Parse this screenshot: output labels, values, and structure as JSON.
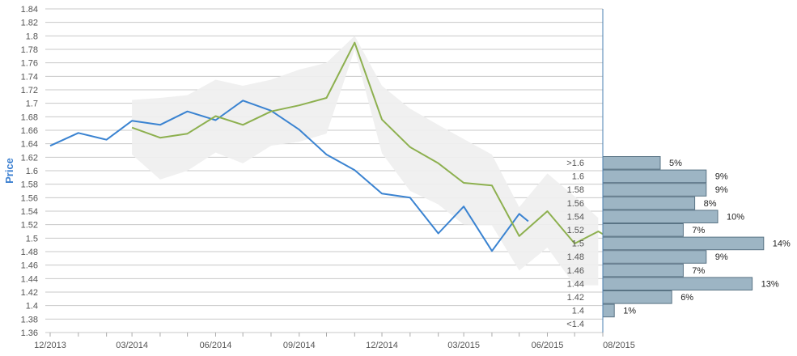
{
  "chart_data": {
    "type": "line",
    "ylabel": "Price",
    "xlabel": "",
    "ylim": [
      1.36,
      1.84
    ],
    "y_ticks": [
      "1.36",
      "1.38",
      "1.4",
      "1.42",
      "1.44",
      "1.46",
      "1.48",
      "1.5",
      "1.52",
      "1.54",
      "1.56",
      "1.58",
      "1.6",
      "1.62",
      "1.64",
      "1.66",
      "1.68",
      "1.7",
      "1.72",
      "1.74",
      "1.76",
      "1.78",
      "1.8",
      "1.82",
      "1.84"
    ],
    "x_tick_labels": [
      "12/2013",
      "03/2014",
      "06/2014",
      "09/2014",
      "12/2014",
      "03/2015",
      "06/2015",
      "08/2015"
    ],
    "grid": true,
    "series": [
      {
        "color": "#3a83d1",
        "points": [
          [
            "2013-12-01",
            1.637
          ],
          [
            "2014-01-01",
            1.656
          ],
          [
            "2014-02-01",
            1.646
          ],
          [
            "2014-03-01",
            1.674
          ],
          [
            "2014-04-01",
            1.668
          ],
          [
            "2014-05-01",
            1.688
          ],
          [
            "2014-06-01",
            1.675
          ],
          [
            "2014-07-01",
            1.704
          ],
          [
            "2014-08-01",
            1.689
          ],
          [
            "2014-09-01",
            1.661
          ],
          [
            "2014-10-01",
            1.624
          ],
          [
            "2014-11-01",
            1.601
          ],
          [
            "2014-12-01",
            1.566
          ],
          [
            "2015-01-01",
            1.56
          ],
          [
            "2015-02-01",
            1.507
          ],
          [
            "2015-03-01",
            1.547
          ],
          [
            "2015-04-01",
            1.481
          ],
          [
            "2015-05-01",
            1.536
          ],
          [
            "2015-05-11",
            1.525
          ]
        ]
      },
      {
        "color": "#8db04f",
        "points": [
          [
            "2014-03-01",
            1.664
          ],
          [
            "2014-04-01",
            1.649
          ],
          [
            "2014-05-01",
            1.655
          ],
          [
            "2014-06-01",
            1.681
          ],
          [
            "2014-07-01",
            1.668
          ],
          [
            "2014-08-01",
            1.688
          ],
          [
            "2014-09-01",
            1.697
          ],
          [
            "2014-10-01",
            1.708
          ],
          [
            "2014-11-01",
            1.79
          ],
          [
            "2014-12-01",
            1.676
          ],
          [
            "2015-01-01",
            1.635
          ],
          [
            "2015-02-01",
            1.611
          ],
          [
            "2015-03-01",
            1.582
          ],
          [
            "2015-04-01",
            1.578
          ],
          [
            "2015-05-01",
            1.503
          ],
          [
            "2015-06-01",
            1.54
          ],
          [
            "2015-07-01",
            1.492
          ],
          [
            "2015-07-27",
            1.51
          ],
          [
            "2015-08-01",
            1.506
          ]
        ]
      }
    ],
    "band": {
      "color": "#eeeeee",
      "upper": [
        [
          "2014-03-01",
          1.705
        ],
        [
          "2014-04-01",
          1.708
        ],
        [
          "2014-05-01",
          1.712
        ],
        [
          "2014-06-01",
          1.735
        ],
        [
          "2014-07-01",
          1.726
        ],
        [
          "2014-08-01",
          1.735
        ],
        [
          "2014-09-01",
          1.75
        ],
        [
          "2014-10-01",
          1.76
        ],
        [
          "2014-11-01",
          1.8
        ],
        [
          "2014-12-01",
          1.726
        ],
        [
          "2015-01-01",
          1.692
        ],
        [
          "2015-02-01",
          1.668
        ],
        [
          "2015-03-01",
          1.647
        ],
        [
          "2015-04-01",
          1.624
        ],
        [
          "2015-05-01",
          1.546
        ],
        [
          "2015-06-01",
          1.596
        ],
        [
          "2015-07-01",
          1.562
        ],
        [
          "2015-07-27",
          1.53
        ]
      ],
      "lower": [
        [
          "2014-03-01",
          1.624
        ],
        [
          "2014-04-01",
          1.587
        ],
        [
          "2014-05-01",
          1.6
        ],
        [
          "2014-06-01",
          1.627
        ],
        [
          "2014-07-01",
          1.611
        ],
        [
          "2014-08-01",
          1.637
        ],
        [
          "2014-09-01",
          1.643
        ],
        [
          "2014-10-01",
          1.655
        ],
        [
          "2014-11-01",
          1.78
        ],
        [
          "2014-12-01",
          1.626
        ],
        [
          "2015-01-01",
          1.57
        ],
        [
          "2015-02-01",
          1.55
        ],
        [
          "2015-03-01",
          1.52
        ],
        [
          "2015-04-01",
          1.519
        ],
        [
          "2015-05-01",
          1.452
        ],
        [
          "2015-06-01",
          1.486
        ],
        [
          "2015-07-01",
          1.43
        ],
        [
          "2015-07-27",
          1.43
        ]
      ]
    },
    "histogram": {
      "color": "#9db5c4",
      "categories": [
        ">1.6",
        "1.6",
        "1.58",
        "1.56",
        "1.54",
        "1.52",
        "1.5",
        "1.48",
        "1.46",
        "1.44",
        "1.42",
        "1.4",
        "<1.4"
      ],
      "values": [
        5,
        9,
        9,
        8,
        10,
        7,
        14,
        9,
        7,
        13,
        6,
        1,
        0
      ],
      "labels": [
        "5%",
        "9%",
        "9%",
        "8%",
        "10%",
        "7%",
        "14%",
        "9%",
        "7%",
        "13%",
        "6%",
        "1%",
        ""
      ]
    }
  }
}
